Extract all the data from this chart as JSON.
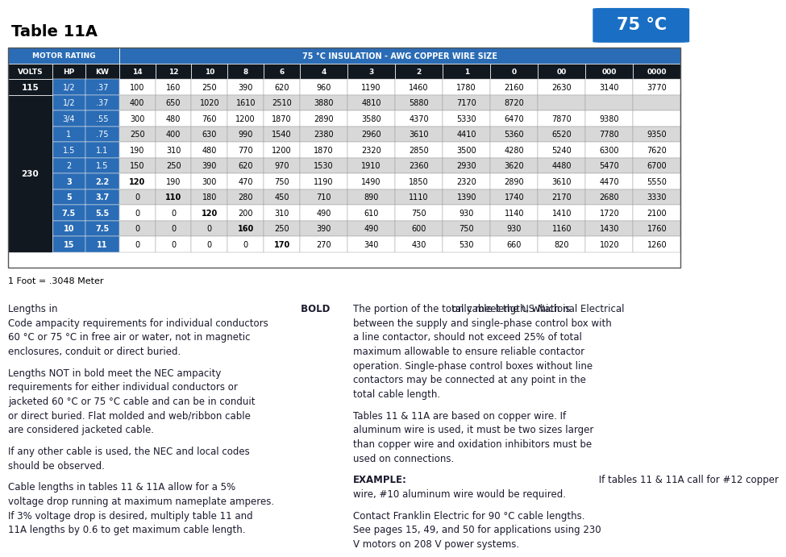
{
  "title": "Table 11A",
  "badge_text": "75 °C",
  "header1": "MOTOR RATING",
  "header2": "75 °C INSULATION - AWG COPPER WIRE SIZE",
  "col_headers": [
    "VOLTS",
    "HP",
    "KW",
    "14",
    "12",
    "10",
    "8",
    "6",
    "4",
    "3",
    "2",
    "1",
    "0",
    "00",
    "000",
    "0000"
  ],
  "rows": [
    {
      "volts": "115",
      "hp": "1/2",
      "kw": ".37",
      "vals": [
        "100",
        "160",
        "250",
        "390",
        "620",
        "960",
        "1190",
        "1460",
        "1780",
        "2160",
        "2630",
        "3140",
        "3770"
      ],
      "bold_cols": [],
      "hp_bold": false,
      "kw_bold": false
    },
    {
      "volts": "230",
      "hp": "1/2",
      "kw": ".37",
      "vals": [
        "400",
        "650",
        "1020",
        "1610",
        "2510",
        "3880",
        "4810",
        "5880",
        "7170",
        "8720",
        "",
        "",
        ""
      ],
      "bold_cols": [],
      "hp_bold": false,
      "kw_bold": false
    },
    {
      "volts": "",
      "hp": "3/4",
      "kw": ".55",
      "vals": [
        "300",
        "480",
        "760",
        "1200",
        "1870",
        "2890",
        "3580",
        "4370",
        "5330",
        "6470",
        "7870",
        "9380",
        ""
      ],
      "bold_cols": [],
      "hp_bold": false,
      "kw_bold": false
    },
    {
      "volts": "",
      "hp": "1",
      "kw": ".75",
      "vals": [
        "250",
        "400",
        "630",
        "990",
        "1540",
        "2380",
        "2960",
        "3610",
        "4410",
        "5360",
        "6520",
        "7780",
        "9350"
      ],
      "bold_cols": [],
      "hp_bold": false,
      "kw_bold": false
    },
    {
      "volts": "",
      "hp": "1.5",
      "kw": "1.1",
      "vals": [
        "190",
        "310",
        "480",
        "770",
        "1200",
        "1870",
        "2320",
        "2850",
        "3500",
        "4280",
        "5240",
        "6300",
        "7620"
      ],
      "bold_cols": [],
      "hp_bold": false,
      "kw_bold": false
    },
    {
      "volts": "",
      "hp": "2",
      "kw": "1.5",
      "vals": [
        "150",
        "250",
        "390",
        "620",
        "970",
        "1530",
        "1910",
        "2360",
        "2930",
        "3620",
        "4480",
        "5470",
        "6700"
      ],
      "bold_cols": [],
      "hp_bold": false,
      "kw_bold": false
    },
    {
      "volts": "",
      "hp": "3",
      "kw": "2.2",
      "vals": [
        "120",
        "190",
        "300",
        "470",
        "750",
        "1190",
        "1490",
        "1850",
        "2320",
        "2890",
        "3610",
        "4470",
        "5550"
      ],
      "bold_cols": [
        0
      ],
      "hp_bold": true,
      "kw_bold": true
    },
    {
      "volts": "",
      "hp": "5",
      "kw": "3.7",
      "vals": [
        "0",
        "110",
        "180",
        "280",
        "450",
        "710",
        "890",
        "1110",
        "1390",
        "1740",
        "2170",
        "2680",
        "3330"
      ],
      "bold_cols": [
        1
      ],
      "hp_bold": true,
      "kw_bold": true
    },
    {
      "volts": "",
      "hp": "7.5",
      "kw": "5.5",
      "vals": [
        "0",
        "0",
        "120",
        "200",
        "310",
        "490",
        "610",
        "750",
        "930",
        "1140",
        "1410",
        "1720",
        "2100"
      ],
      "bold_cols": [
        2
      ],
      "hp_bold": true,
      "kw_bold": true
    },
    {
      "volts": "",
      "hp": "10",
      "kw": "7.5",
      "vals": [
        "0",
        "0",
        "0",
        "160",
        "250",
        "390",
        "490",
        "600",
        "750",
        "930",
        "1160",
        "1430",
        "1760"
      ],
      "bold_cols": [
        3
      ],
      "hp_bold": true,
      "kw_bold": true
    },
    {
      "volts": "",
      "hp": "15",
      "kw": "11",
      "vals": [
        "0",
        "0",
        "0",
        "0",
        "170",
        "270",
        "340",
        "430",
        "530",
        "660",
        "820",
        "1020",
        "1260"
      ],
      "bold_cols": [
        4
      ],
      "hp_bold": true,
      "kw_bold": true
    }
  ],
  "footer_note": "1 Foot = .3048 Meter",
  "blue_header": "#2a6cb5",
  "dark_navy": "#111820",
  "row_white": "#ffffff",
  "row_gray": "#d8d8d8",
  "row_blue_light": "#c8d8ee",
  "text_dark": "#1a1a2e",
  "badge_blue": "#1a6fc4",
  "para_left": [
    [
      [
        "Lengths in ",
        "normal"
      ],
      [
        "BOLD",
        "bold"
      ],
      [
        " only meet the US National Electrical Code ampacity requirements for individual conductors 60 °C or 75 °C in free air or water, not in magnetic enclosures, conduit or direct buried.",
        "normal"
      ]
    ],
    [
      [
        "Lengths NOT in bold meet the NEC ampacity requirements for either individual conductors or jacketed 60 °C or 75 °C cable and can be in conduit or direct buried. Flat molded and web/ribbon cable are considered jacketed cable.",
        "normal"
      ]
    ],
    [
      [
        "If any other cable is used, the NEC and local codes should be observed.",
        "normal"
      ]
    ],
    [
      [
        "Cable lengths in tables 11 & 11A allow for a 5% voltage drop running at maximum nameplate amperes. If 3% voltage drop is desired, multiply table 11 and 11A lengths by 0.6 to get maximum cable length.",
        "normal"
      ]
    ]
  ],
  "para_right": [
    [
      [
        "The portion of the total cable length, which is between the supply and single-phase control box with a line contactor, should not exceed 25% of total maximum allowable to ensure reliable contactor operation. Single-phase control boxes without line contactors may be connected at any point in the total cable length.",
        "normal"
      ]
    ],
    [
      [
        "Tables 11 & 11A are based on copper wire. If aluminum wire is used, it must be two sizes larger than copper wire and oxidation inhibitors must be used on connections.",
        "normal"
      ]
    ],
    [
      [
        "EXAMPLE:",
        "bold"
      ],
      [
        " If tables 11 & 11A call for #12 copper wire, #10 aluminum wire would be required.",
        "normal"
      ]
    ],
    [
      [
        "Contact Franklin Electric for 90 °C cable lengths. See pages 15, 49, and 50 for applications using 230 V motors on 208 V power systems.",
        "normal"
      ]
    ]
  ]
}
